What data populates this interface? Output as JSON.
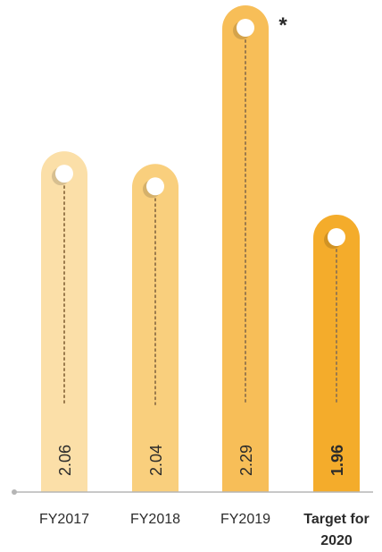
{
  "chart_data": {
    "type": "bar",
    "categories": [
      "FY2017",
      "FY2018",
      "FY2019",
      "Target for 2020"
    ],
    "category_label_lines": [
      [
        "FY2017"
      ],
      [
        "FY2018"
      ],
      [
        "FY2019"
      ],
      [
        "Target for",
        "2020"
      ]
    ],
    "values": [
      2.06,
      2.04,
      2.29,
      1.96
    ],
    "value_labels": [
      "2.06",
      "2.04",
      "2.29",
      "1.96"
    ],
    "highlighted_index": 3,
    "annotation": {
      "text": "*",
      "category": "FY2019"
    },
    "title": "",
    "xlabel": "",
    "ylabel": "",
    "colors": [
      "#fbdfa8",
      "#f9cf7d",
      "#f7be58",
      "#f4ac2b"
    ],
    "dot_color": "#9a7a4c",
    "axis_color": "#b5b5b5",
    "text_color": "#2b2b2b"
  }
}
